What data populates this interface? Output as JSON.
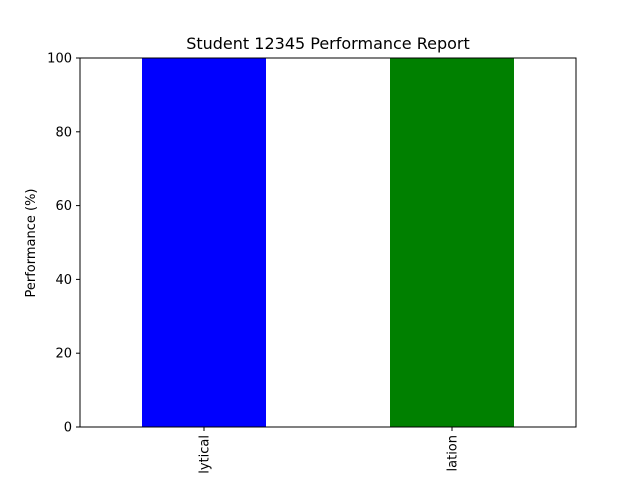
{
  "chart_data": {
    "type": "bar",
    "title": "Student 12345 Performance Report",
    "xlabel": "",
    "ylabel": "Performance (%)",
    "ylim": [
      0,
      100
    ],
    "yticks": [
      0,
      20,
      40,
      60,
      80,
      100
    ],
    "categories": [
      "lytical",
      "lation"
    ],
    "values": [
      100,
      100
    ],
    "colors": [
      "#0000ff",
      "#008000"
    ],
    "grid": false,
    "legend": "none"
  }
}
